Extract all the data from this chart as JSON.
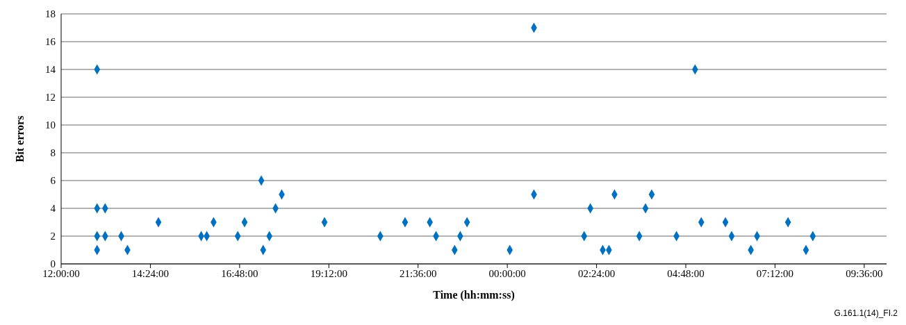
{
  "chart_data": {
    "type": "scatter",
    "xlabel": "Time (hh:mm:ss)",
    "ylabel": "Bit errors",
    "annotations": [
      "G.161.1(14)_FI.2"
    ],
    "x": [
      "2000-01-01T12:58",
      "2000-01-01T12:58",
      "2000-01-01T12:58",
      "2000-01-01T12:58",
      "2000-01-01T13:11",
      "2000-01-01T13:11",
      "2000-01-01T13:37",
      "2000-01-01T13:47",
      "2000-01-01T14:37",
      "2000-01-01T15:46",
      "2000-01-01T15:55",
      "2000-01-01T16:06",
      "2000-01-01T16:45",
      "2000-01-01T16:56",
      "2000-01-01T17:23",
      "2000-01-01T17:26",
      "2000-01-01T17:36",
      "2000-01-01T17:46",
      "2000-01-01T17:56",
      "2000-01-01T19:05",
      "2000-01-01T20:35",
      "2000-01-01T21:15",
      "2000-01-01T21:55",
      "2000-01-01T22:05",
      "2000-01-01T22:35",
      "2000-01-01T22:44",
      "2000-01-01T22:55",
      "2000-01-02T00:04",
      "2000-01-02T00:43",
      "2000-01-02T00:43",
      "2000-01-02T02:04",
      "2000-01-02T02:14",
      "2000-01-02T02:34",
      "2000-01-02T02:44",
      "2000-01-02T02:53",
      "2000-01-02T03:33",
      "2000-01-02T03:43",
      "2000-01-02T03:53",
      "2000-01-02T04:33",
      "2000-01-02T05:03",
      "2000-01-02T05:13",
      "2000-01-02T05:52",
      "2000-01-02T06:02",
      "2000-01-02T06:33",
      "2000-01-02T06:43",
      "2000-01-02T07:33",
      "2000-01-02T08:02",
      "2000-01-02T08:13"
    ],
    "series": [
      {
        "color": "#0070c0",
        "values": [
          14,
          4,
          2,
          1,
          4,
          2,
          2,
          1,
          3,
          2,
          2,
          3,
          2,
          3,
          6,
          1,
          2,
          4,
          5,
          3,
          2,
          3,
          3,
          2,
          1,
          2,
          3,
          1,
          17,
          5,
          2,
          4,
          1,
          1,
          5,
          2,
          4,
          5,
          2,
          14,
          3,
          3,
          2,
          1,
          2,
          3,
          1,
          2
        ]
      }
    ],
    "xlim": [
      "2000-01-01T12:00",
      "2000-01-02T10:12"
    ],
    "xticks": [
      {
        "value": "2000-01-01T12:00",
        "label": "12:00:00"
      },
      {
        "value": "2000-01-01T14:24",
        "label": "14:24:00"
      },
      {
        "value": "2000-01-01T16:48",
        "label": "16:48:00"
      },
      {
        "value": "2000-01-01T19:12",
        "label": "19:12:00"
      },
      {
        "value": "2000-01-01T21:36",
        "label": "21:36:00"
      },
      {
        "value": "2000-01-02T00:00",
        "label": "00:00:00"
      },
      {
        "value": "2000-01-02T02:24",
        "label": "02:24:00"
      },
      {
        "value": "2000-01-02T04:48",
        "label": "04:48:00"
      },
      {
        "value": "2000-01-02T07:12",
        "label": "07:12:00"
      },
      {
        "value": "2000-01-02T09:36",
        "label": "09:36:00"
      }
    ],
    "ylim": [
      0,
      18
    ],
    "yticks": [
      0,
      2,
      4,
      6,
      8,
      10,
      12,
      14,
      16,
      18
    ],
    "grid": "y",
    "marker": "diamond"
  }
}
